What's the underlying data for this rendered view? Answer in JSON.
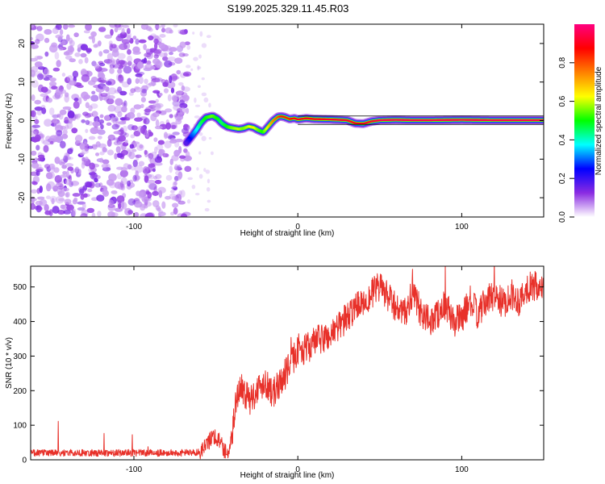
{
  "figure_title": "S199.2025.329.11.45.R03",
  "chart_data": [
    {
      "type": "heatmap",
      "title": "S199.2025.329.11.45.R03",
      "xlabel": "Height of straight line (km)",
      "ylabel": "Frequency (Hz)",
      "xlim": [
        -163,
        150
      ],
      "ylim": [
        -25,
        25
      ],
      "xticks": [
        -100,
        0,
        100
      ],
      "xtick_labels": [
        "-100",
        "0",
        "100"
      ],
      "yticks": [
        -20,
        -10,
        0,
        10,
        20
      ],
      "ytick_labels": [
        "-20",
        "-10",
        "0",
        "10",
        "20"
      ],
      "noise_region_x": [
        -163,
        -67
      ],
      "signal_track": {
        "x": [
          -68,
          -65,
          -62,
          -59,
          -56,
          -52,
          -49,
          -46,
          -43,
          -40,
          -36,
          -33,
          -30,
          -27,
          -24,
          -21,
          -18,
          -15,
          -12,
          -10,
          -8,
          -5,
          -2,
          0,
          5,
          10,
          20,
          30,
          35,
          40,
          45,
          50,
          60,
          70,
          80,
          100,
          120,
          150
        ],
        "frequency": [
          -5.8,
          -4.2,
          -2.5,
          -0.5,
          0.8,
          1.2,
          0.5,
          -0.8,
          -1.6,
          -1.9,
          -2.2,
          -2.0,
          -1.5,
          -1.8,
          -2.5,
          -3.0,
          -1.5,
          0.0,
          1.0,
          1.1,
          0.9,
          0.4,
          0.6,
          0.3,
          0.6,
          0.4,
          0.3,
          0.1,
          -0.7,
          -0.8,
          -0.2,
          0.1,
          0.2,
          0.1,
          0.1,
          0.2,
          0.1,
          0.1
        ],
        "amplitude": [
          0.15,
          0.25,
          0.35,
          0.45,
          0.5,
          0.55,
          0.5,
          0.45,
          0.5,
          0.55,
          0.6,
          0.55,
          0.6,
          0.65,
          0.55,
          0.5,
          0.65,
          0.75,
          0.8,
          0.85,
          0.85,
          0.85,
          0.9,
          0.9,
          0.9,
          0.9,
          0.92,
          0.92,
          0.9,
          0.9,
          0.92,
          0.95,
          0.95,
          0.95,
          0.95,
          0.95,
          0.95,
          0.95
        ]
      }
    },
    {
      "type": "colorbar",
      "label": "Normalized spectral amplitude",
      "range": [
        0,
        1
      ],
      "ticks": [
        0.0,
        0.2,
        0.4,
        0.6,
        0.8
      ],
      "tick_labels": [
        "0.0",
        "0.2",
        "0.4",
        "0.6",
        "0.8"
      ],
      "colormap": [
        "#ffffff",
        "#8a2be2",
        "#0000ff",
        "#00ffff",
        "#00ff00",
        "#ffff00",
        "#ff8000",
        "#ff0000",
        "#ff0080"
      ]
    },
    {
      "type": "line",
      "title": "",
      "xlabel": "Height of straight line (km)",
      "ylabel": "SNR (10 * v/v)",
      "xlim": [
        -163,
        150
      ],
      "ylim": [
        0,
        560
      ],
      "xticks": [
        -100,
        0,
        100
      ],
      "xtick_labels": [
        "-100",
        "0",
        "100"
      ],
      "yticks": [
        0,
        100,
        200,
        300,
        400,
        500
      ],
      "ytick_labels": [
        "0",
        "100",
        "200",
        "300",
        "400",
        "500"
      ],
      "line_color": "#e8312a",
      "x": [
        -163,
        -150,
        -140,
        -130,
        -120,
        -110,
        -100,
        -90,
        -80,
        -70,
        -60,
        -55,
        -52,
        -48,
        -45,
        -42,
        -40,
        -38,
        -35,
        -30,
        -25,
        -20,
        -15,
        -10,
        -5,
        0,
        5,
        10,
        15,
        20,
        25,
        30,
        35,
        40,
        45,
        50,
        55,
        60,
        65,
        70,
        75,
        80,
        85,
        90,
        95,
        100,
        105,
        110,
        115,
        120,
        125,
        130,
        135,
        140,
        145,
        150
      ],
      "y": [
        20,
        20,
        20,
        20,
        20,
        20,
        20,
        20,
        20,
        20,
        22,
        45,
        75,
        55,
        30,
        20,
        75,
        160,
        220,
        170,
        200,
        230,
        190,
        230,
        270,
        320,
        320,
        340,
        350,
        360,
        390,
        410,
        440,
        460,
        480,
        500,
        470,
        440,
        420,
        480,
        430,
        400,
        420,
        450,
        400,
        410,
        460,
        420,
        460,
        480,
        450,
        480,
        460,
        500,
        500,
        480
      ]
    }
  ]
}
